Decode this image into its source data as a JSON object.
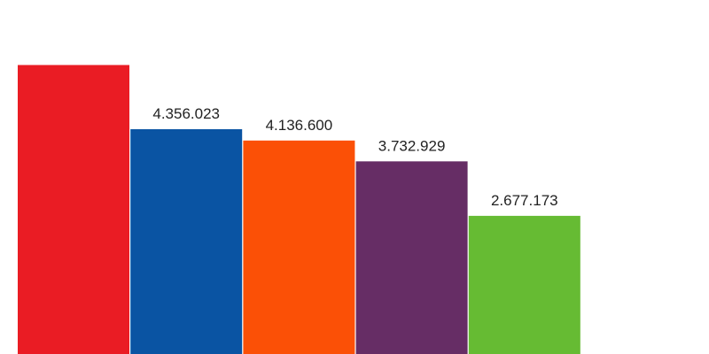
{
  "chart_data": {
    "type": "bar",
    "categories": [
      "",
      "",
      "",
      "",
      ""
    ],
    "values": [
      5600000,
      4356023,
      4136600,
      3732929,
      2677173
    ],
    "data_labels": [
      "",
      "4.356.023",
      "4.136.600",
      "3.732.929",
      "2.677.173"
    ],
    "colors": [
      "#ea1c24",
      "#0a54a3",
      "#fb5006",
      "#662d65",
      "#66bb33"
    ],
    "title": "",
    "xlabel": "",
    "ylabel": "",
    "grid": false,
    "legend": "none"
  }
}
